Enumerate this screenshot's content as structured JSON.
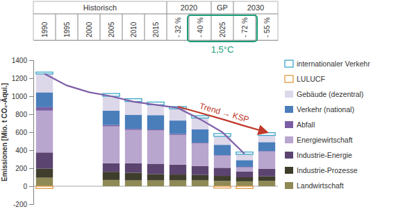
{
  "chart_data": {
    "type": "bar",
    "stacked": true,
    "grid": false,
    "legend": "right",
    "y_label": "Emissionen [Mio. t CO₂-Äqui.]",
    "categories": [
      "1990",
      "1995",
      "2000",
      "2005",
      "2010",
      "2015",
      "- 32 %",
      "- 40 %",
      "2025",
      "- 72 %",
      "- 55 %"
    ],
    "category_groups": [
      {
        "label": "Historisch",
        "categories": [
          "1990",
          "1995",
          "2000",
          "2005",
          "2010",
          "2015"
        ]
      },
      {
        "label": "2020",
        "categories": [
          "- 32 %",
          "- 40 %"
        ]
      },
      {
        "label": "GP",
        "categories": [
          "2025"
        ]
      },
      {
        "label": "2030",
        "categories": [
          "- 72 %",
          "- 55 %"
        ]
      }
    ],
    "annotations": [
      {
        "text": "1,5°C",
        "color": "#1a9e78",
        "categories": [
          "- 40 %",
          "2025",
          "- 72 %"
        ]
      }
    ],
    "ylim": [
      -200,
      1400
    ],
    "yticks": [
      -200,
      0,
      200,
      400,
      600,
      800,
      1000,
      1200,
      1400
    ],
    "series": [
      {
        "name": "Landwirtschaft",
        "type": "bar",
        "color": "#8f8a55",
        "values": [
          95,
          null,
          null,
          70,
          65,
          65,
          65,
          65,
          60,
          55,
          60
        ]
      },
      {
        "name": "Industrie-Prozesse",
        "type": "bar",
        "color": "#3f3d2b",
        "values": [
          100,
          null,
          null,
          90,
          85,
          70,
          65,
          60,
          55,
          45,
          50
        ]
      },
      {
        "name": "Industrie-Energie",
        "type": "bar",
        "color": "#5c4470",
        "values": [
          180,
          null,
          null,
          95,
          105,
          115,
          110,
          100,
          90,
          65,
          85
        ]
      },
      {
        "name": "Energiewirtschaft",
        "type": "bar",
        "color": "#b9a6cf",
        "values": [
          465,
          null,
          null,
          410,
          370,
          370,
          330,
          250,
          135,
          45,
          190
        ]
      },
      {
        "name": "Abfall",
        "type": "bar",
        "color": "#7a5ea3",
        "values": [
          38,
          null,
          null,
          15,
          12,
          10,
          10,
          8,
          5,
          5,
          5
        ]
      },
      {
        "name": "Verkehr (national)",
        "type": "bar",
        "color": "#4a7ebb",
        "values": [
          165,
          null,
          null,
          160,
          155,
          160,
          150,
          150,
          115,
          75,
          100
        ]
      },
      {
        "name": "Gebäude (dezentral)",
        "type": "bar",
        "color": "#ddd7ea",
        "values": [
          205,
          null,
          null,
          160,
          150,
          115,
          130,
          125,
          95,
          65,
          75
        ]
      },
      {
        "name": "LULUCF",
        "type": "bar",
        "color": "#e09a45",
        "line_style": "outline",
        "values": [
          -25,
          null,
          null,
          null,
          null,
          null,
          null,
          null,
          -20,
          -25,
          null
        ]
      },
      {
        "name": "internationaler Verkehr",
        "type": "bar",
        "color": "#3aa6c8",
        "line_style": "outline",
        "values": [
          20,
          null,
          null,
          30,
          30,
          30,
          25,
          25,
          30,
          25,
          30
        ]
      },
      {
        "type": "line",
        "color": "#7f5fa8",
        "values": [
          1250,
          1120,
          1045,
          1000,
          940,
          905,
          870,
          745,
          600,
          360,
          null
        ]
      },
      {
        "name": "Trend → KSP",
        "type": "line",
        "color": "#c0392b",
        "marker": "arrow",
        "values": [
          null,
          null,
          null,
          null,
          null,
          null,
          885,
          815,
          745,
          670,
          600
        ]
      }
    ]
  }
}
